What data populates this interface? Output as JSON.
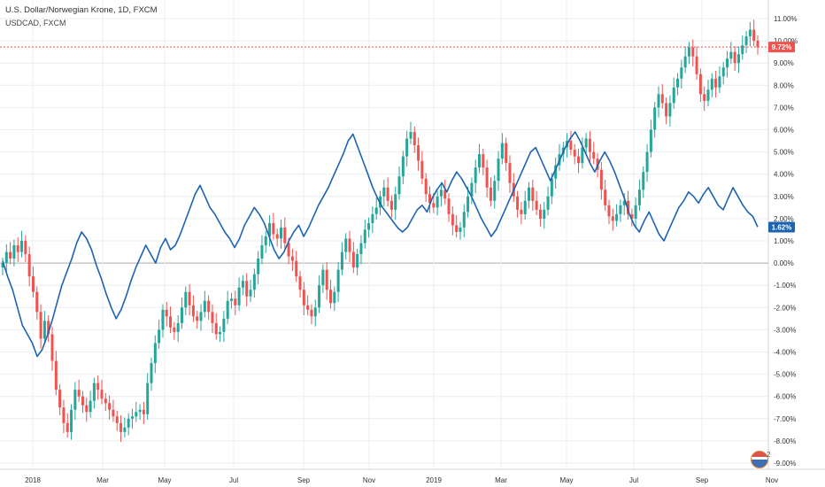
{
  "legend": {
    "main": "U.S. Dollar/Norwegian Krone, 1D, FXCM",
    "compare": "USDCAD, FXCM"
  },
  "colors": {
    "up": "#26a69a",
    "down": "#ef5350",
    "compare_line": "#1e63b0",
    "grid": "#e9eef3",
    "zero_line": "#aaaaaa",
    "last_line": "#ef5350"
  },
  "flag_counter": "2",
  "chart_data": {
    "type": "line",
    "x_ticks": [
      "2018",
      "Mar",
      "May",
      "Jul",
      "Sep",
      "Nov",
      "2019",
      "Mar",
      "May",
      "Jul",
      "Sep",
      "Nov"
    ],
    "y_ticks": [
      "11.00%",
      "10.00%",
      "9.00%",
      "8.00%",
      "7.00%",
      "6.00%",
      "5.00%",
      "4.00%",
      "3.00%",
      "2.00%",
      "1.00%",
      "0.00%",
      "-1.00%",
      "-2.00%",
      "-3.00%",
      "-4.00%",
      "-5.00%",
      "-6.00%",
      "-7.00%",
      "-8.00%",
      "-9.00%"
    ],
    "ylim": [
      -9,
      11
    ],
    "unit": "percent change",
    "last_values": [
      {
        "label": "9.72%",
        "value": 9.72,
        "color": "#ef5350"
      },
      {
        "label": "1.62%",
        "value": 1.62,
        "color": "#1e63b0"
      }
    ],
    "series": [
      {
        "name": "U.S. Dollar/Norwegian Krone, 1D, FXCM",
        "style": "candles",
        "values": [
          0.0,
          0.5,
          0.2,
          0.8,
          0.5,
          1.0,
          0.4,
          -0.6,
          -1.3,
          -2.2,
          -3.4,
          -2.6,
          -3.2,
          -4.4,
          -5.7,
          -6.5,
          -7.2,
          -7.6,
          -6.6,
          -5.7,
          -6.0,
          -6.4,
          -6.7,
          -6.2,
          -5.4,
          -5.7,
          -6.1,
          -6.3,
          -6.6,
          -6.9,
          -7.2,
          -7.6,
          -7.4,
          -7.0,
          -6.9,
          -6.7,
          -6.6,
          -6.8,
          -5.4,
          -4.5,
          -3.6,
          -3.0,
          -2.1,
          -2.4,
          -2.9,
          -3.1,
          -2.7,
          -2.0,
          -1.3,
          -1.9,
          -2.4,
          -2.6,
          -2.2,
          -1.7,
          -2.2,
          -2.7,
          -3.2,
          -3.1,
          -2.5,
          -1.7,
          -1.6,
          -1.9,
          -1.1,
          -0.8,
          -1.5,
          -1.2,
          -0.5,
          0.2,
          0.8,
          1.2,
          1.8,
          1.3,
          1.1,
          1.6,
          0.9,
          0.3,
          0.1,
          -0.6,
          -1.2,
          -1.9,
          -2.1,
          -2.4,
          -2.0,
          -1.0,
          -0.3,
          -1.2,
          -1.8,
          -1.3,
          -0.3,
          0.5,
          1.1,
          0.5,
          -0.2,
          0.4,
          0.9,
          1.5,
          1.8,
          2.2,
          2.5,
          3.0,
          3.4,
          2.8,
          2.4,
          3.1,
          3.9,
          4.8,
          5.6,
          5.9,
          5.3,
          4.6,
          3.8,
          3.1,
          2.7,
          2.5,
          3.0,
          3.3,
          2.9,
          2.2,
          1.7,
          1.4,
          1.6,
          2.3,
          3.0,
          3.6,
          4.3,
          4.9,
          4.3,
          3.4,
          2.8,
          3.7,
          4.7,
          5.4,
          4.5,
          3.6,
          3.0,
          2.4,
          2.2,
          2.8,
          3.4,
          2.8,
          2.4,
          2.0,
          2.4,
          3.0,
          3.8,
          4.4,
          4.9,
          5.2,
          5.5,
          5.1,
          4.8,
          4.5,
          5.2,
          5.6,
          5.0,
          4.7,
          4.2,
          3.3,
          2.6,
          2.1,
          1.9,
          2.2,
          2.6,
          2.8,
          2.2,
          2.0,
          2.6,
          3.3,
          4.1,
          5.0,
          6.0,
          7.0,
          7.6,
          7.2,
          6.6,
          7.2,
          7.9,
          8.3,
          8.8,
          9.3,
          9.7,
          9.3,
          8.5,
          7.6,
          7.3,
          7.8,
          8.3,
          7.9,
          8.4,
          8.8,
          9.2,
          9.5,
          9.0,
          9.4,
          9.8,
          10.2,
          10.5,
          10.0,
          9.72
        ]
      },
      {
        "name": "USDCAD, FXCM",
        "style": "line",
        "values": [
          0.1,
          -0.6,
          -1.2,
          -2.0,
          -2.8,
          -3.2,
          -3.6,
          -4.2,
          -3.9,
          -3.3,
          -2.6,
          -1.8,
          -1.0,
          -0.4,
          0.2,
          0.9,
          1.4,
          1.1,
          0.6,
          -0.1,
          -0.7,
          -1.4,
          -2.0,
          -2.5,
          -2.1,
          -1.5,
          -0.8,
          -0.2,
          0.3,
          0.8,
          0.4,
          0.0,
          0.7,
          1.1,
          0.6,
          0.8,
          1.3,
          1.9,
          2.5,
          3.1,
          3.5,
          3.0,
          2.5,
          2.2,
          1.8,
          1.4,
          1.1,
          0.7,
          1.1,
          1.7,
          2.1,
          2.5,
          2.2,
          1.8,
          1.2,
          0.6,
          0.2,
          0.5,
          1.0,
          1.4,
          1.7,
          1.2,
          1.6,
          2.1,
          2.6,
          3.0,
          3.4,
          3.9,
          4.4,
          4.9,
          5.5,
          5.8,
          5.2,
          4.6,
          4.0,
          3.4,
          2.9,
          2.5,
          2.2,
          1.9,
          1.6,
          1.4,
          1.6,
          2.0,
          2.4,
          2.6,
          2.3,
          2.9,
          3.3,
          3.6,
          3.2,
          3.7,
          4.1,
          3.8,
          3.4,
          3.0,
          2.5,
          2.0,
          1.6,
          1.2,
          1.5,
          2.0,
          2.5,
          3.0,
          3.5,
          4.0,
          4.5,
          5.0,
          5.2,
          4.7,
          4.2,
          3.7,
          4.2,
          4.7,
          5.2,
          5.6,
          5.9,
          5.5,
          5.0,
          4.5,
          4.1,
          4.6,
          5.0,
          4.6,
          4.1,
          3.5,
          2.9,
          2.2,
          1.7,
          1.4,
          1.9,
          2.3,
          1.8,
          1.3,
          1.0,
          1.5,
          2.0,
          2.5,
          2.8,
          3.2,
          3.0,
          2.7,
          3.1,
          3.4,
          3.0,
          2.6,
          2.4,
          2.9,
          3.4,
          3.0,
          2.6,
          2.3,
          2.1,
          1.62
        ]
      }
    ]
  }
}
